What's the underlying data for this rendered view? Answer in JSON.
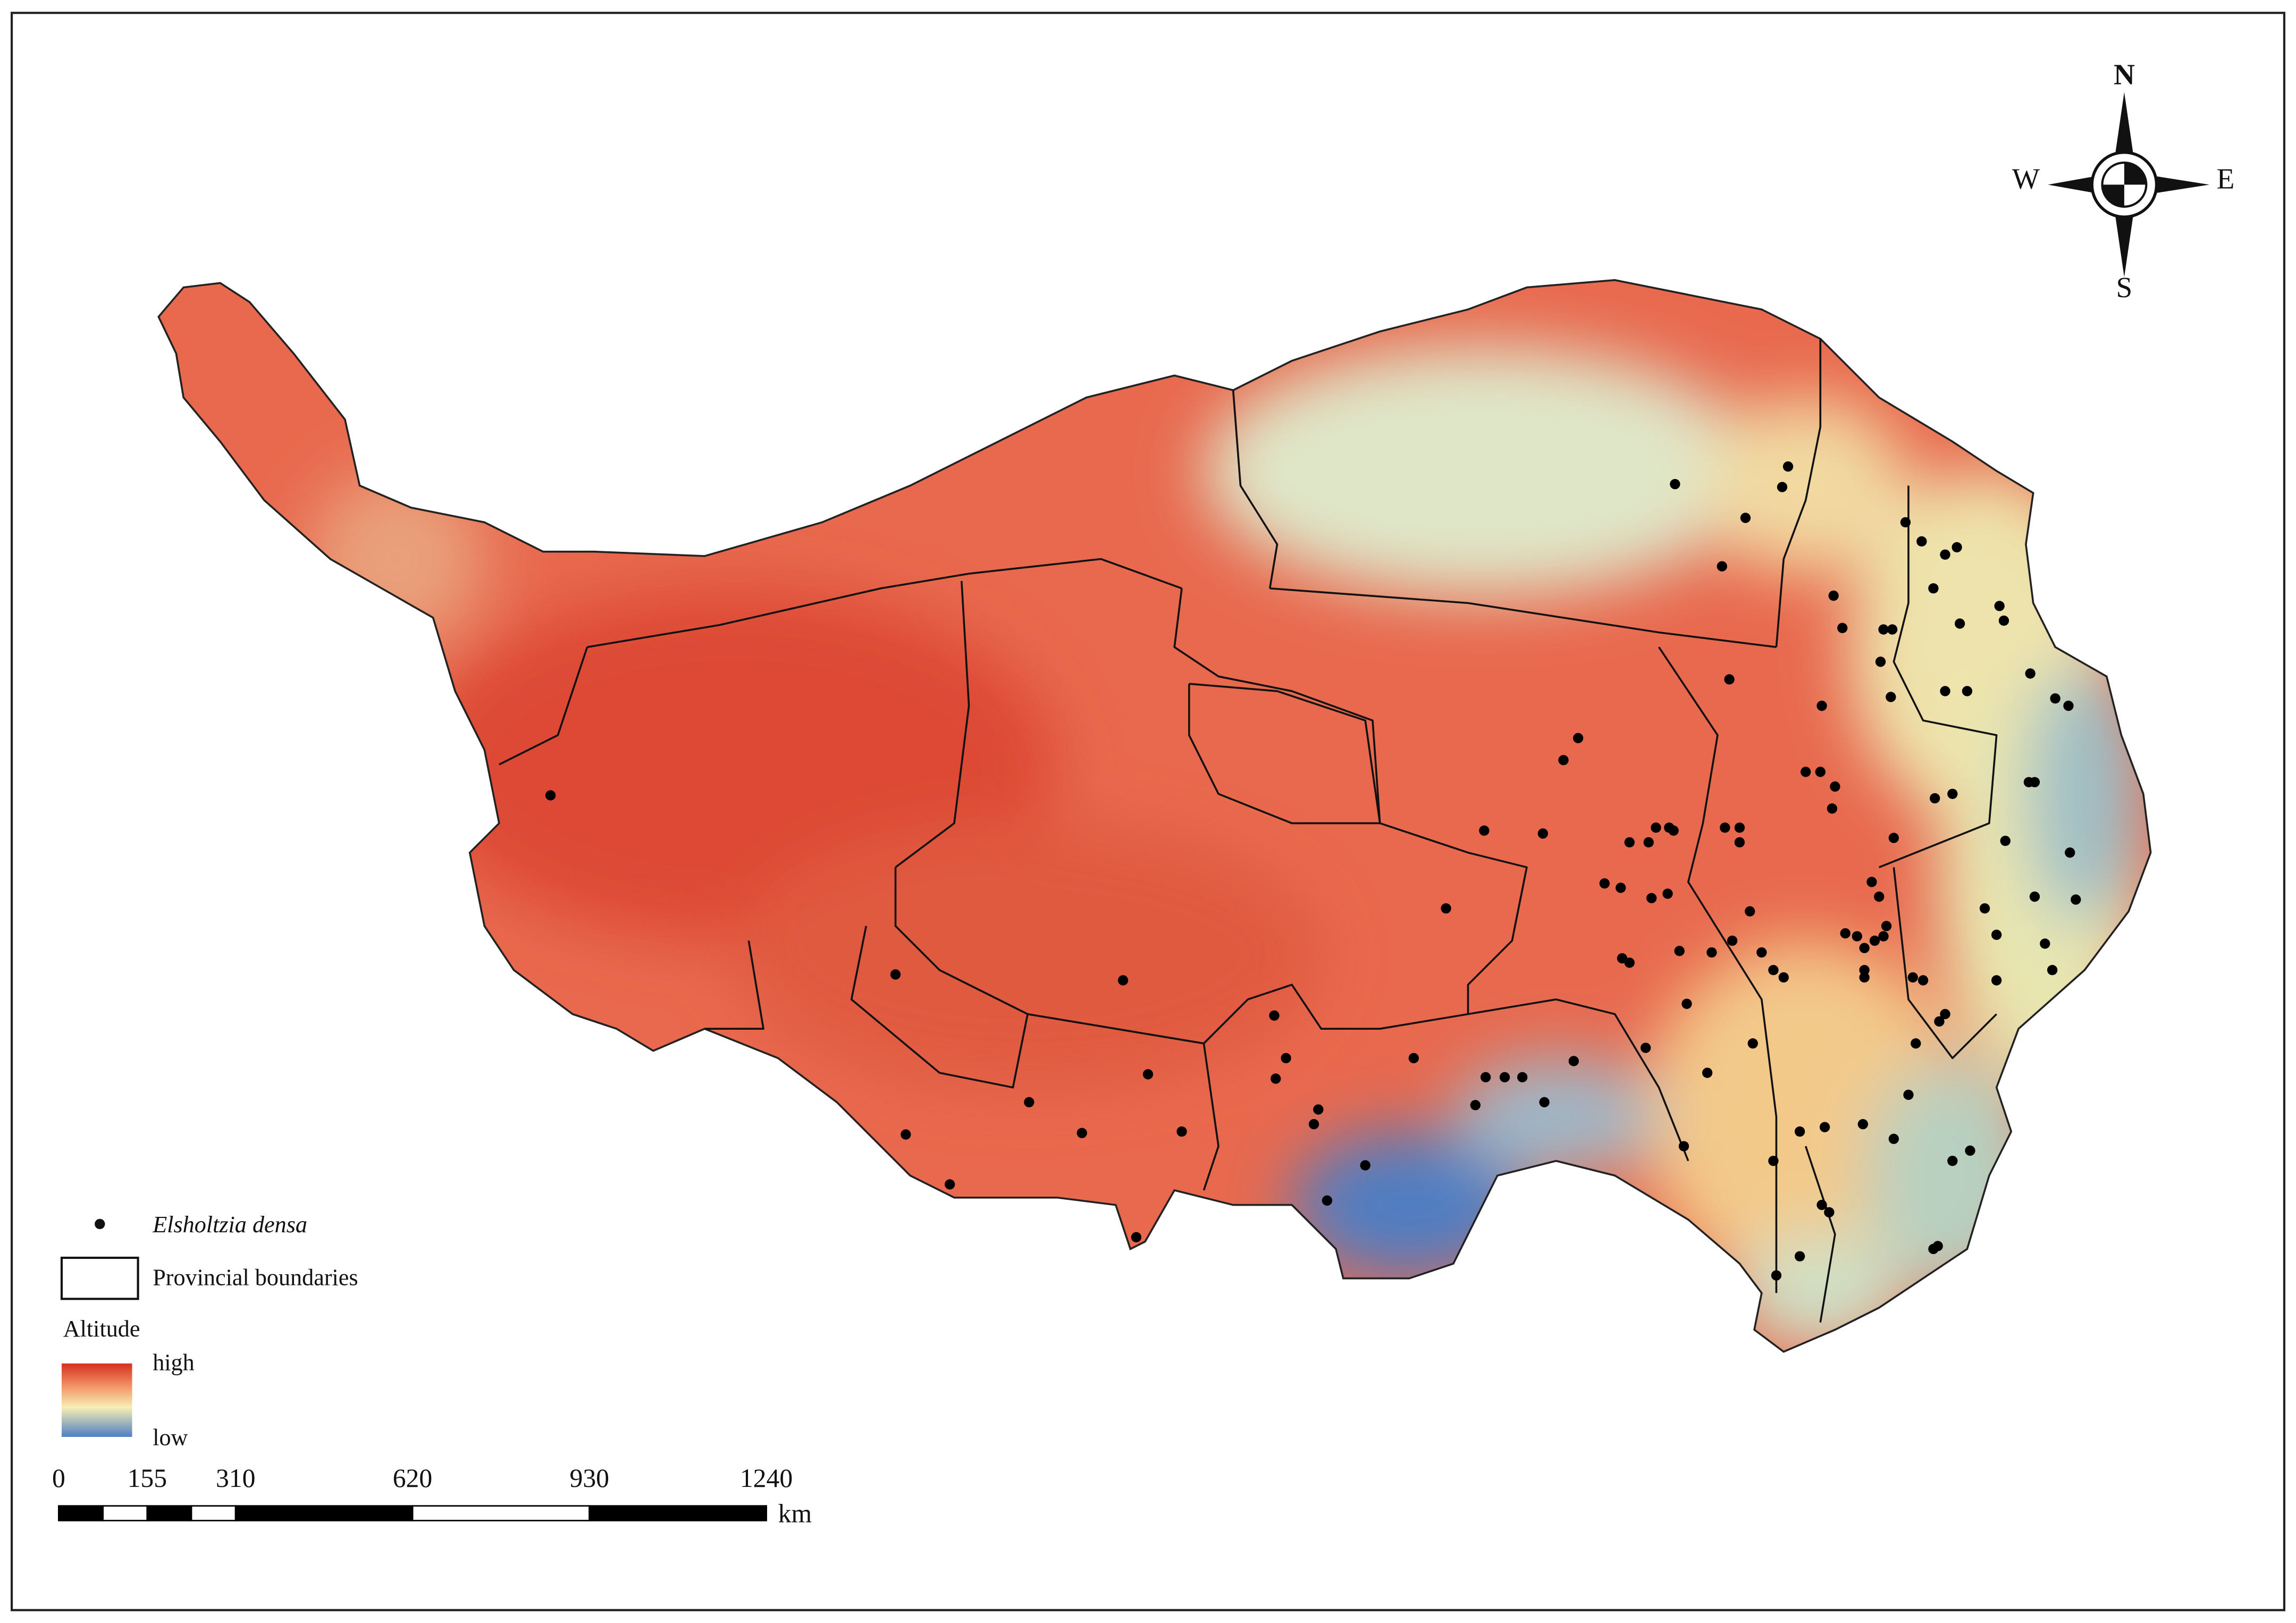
{
  "map": {
    "compass": {
      "n": "N",
      "e": "E",
      "s": "S",
      "w": "W"
    },
    "legend": {
      "species": "Elsholtzia densa",
      "boundaries": "Provincial boundaries",
      "altitude_title": "Altitude",
      "high": "high",
      "low": "low"
    },
    "scale_bar": {
      "ticks": [
        0,
        155,
        310,
        620,
        930,
        1240
      ],
      "unit": "km"
    }
  }
}
